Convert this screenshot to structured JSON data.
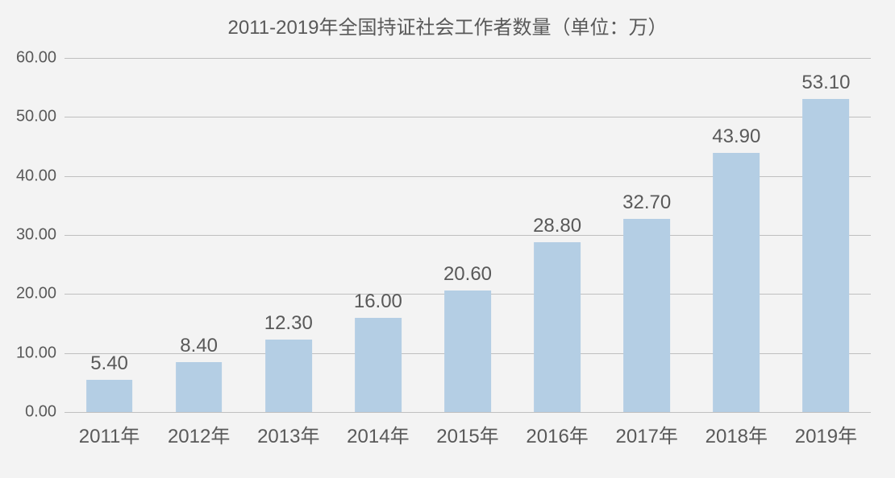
{
  "chart": {
    "type": "bar",
    "title": "2011-2019年全国持证社会工作者数量（单位：万）",
    "title_fontsize": 24,
    "title_color": "#595959",
    "background_color": "#f3f3f3",
    "grid_color": "#bfbfbf",
    "baseline_color": "#bfbfbf",
    "axis_label_color": "#595959",
    "value_label_color": "#595959",
    "bar_color": "#b4cee4",
    "ylim": [
      0,
      60
    ],
    "ytick_step": 10,
    "ytick_decimals": 2,
    "yticks": [
      "0.00",
      "10.00",
      "20.00",
      "30.00",
      "40.00",
      "50.00",
      "60.00"
    ],
    "value_label_fontsize": 24,
    "xtick_fontsize": 24,
    "ytick_fontsize": 20,
    "bar_width_ratio": 0.52,
    "categories": [
      "2011年",
      "2012年",
      "2013年",
      "2014年",
      "2015年",
      "2016年",
      "2017年",
      "2018年",
      "2019年"
    ],
    "values": [
      5.4,
      8.4,
      12.3,
      16.0,
      20.6,
      28.8,
      32.7,
      43.9,
      53.1
    ],
    "value_labels": [
      "5.40",
      "8.40",
      "12.30",
      "16.00",
      "20.60",
      "28.80",
      "32.70",
      "43.90",
      "53.10"
    ]
  }
}
